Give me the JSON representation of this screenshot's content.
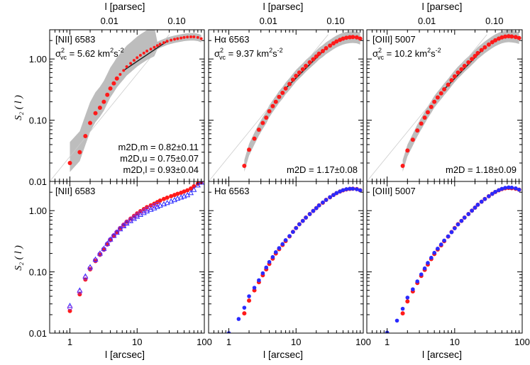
{
  "figure": {
    "ylabel": "S₂ ( l )",
    "top_axis_label": "l [parsec]",
    "bottom_axis_label": "l [arcsec]",
    "x_ticks": [
      "1",
      "10",
      "100"
    ],
    "top_ticks": [
      "0.01",
      "0.10"
    ],
    "y_ticks": [
      "0.01",
      "0.10",
      "1.00"
    ]
  },
  "colors": {
    "red": "#ff1a1a",
    "blue": "#2a2aff",
    "gray": "#bdbdbd",
    "dark": "#222222"
  },
  "chart_data": [
    {
      "panel": "top-left",
      "type": "scatter",
      "title": "[NII] 6583",
      "annotation": "σ²vc = 5.62 km²s⁻²",
      "sigma_label": "σ",
      "sigma_sup": "2",
      "sigma_sub": "vc",
      "sigma_value": " = 5.62 km",
      "unit_sup1": "2",
      "unit_mid": "s",
      "unit_sup2": "-2",
      "fit_lines": [
        "m2D,m = 0.82±0.11",
        "m2D,u = 0.75±0.07",
        "m2D,l = 0.93±0.04"
      ],
      "xscale": "log",
      "yscale": "log",
      "xlim": [
        0.5,
        100
      ],
      "ylim": [
        0.01,
        3
      ],
      "series": [
        {
          "marker": "red-circle",
          "x": [
            1,
            1.4,
            1.7,
            2,
            2.4,
            2.8,
            3.2,
            3.6,
            4,
            4.5,
            5,
            5.6,
            6.3,
            7,
            8,
            9,
            10,
            11.2,
            12.6,
            14,
            16,
            18,
            20,
            22,
            25,
            28,
            32,
            36,
            40,
            45,
            50,
            56,
            63,
            70,
            80,
            90
          ],
          "y": [
            0.02,
            0.03,
            0.055,
            0.09,
            0.13,
            0.16,
            0.2,
            0.26,
            0.33,
            0.4,
            0.48,
            0.56,
            0.65,
            0.75,
            0.85,
            0.95,
            1.05,
            1.15,
            1.25,
            1.35,
            1.45,
            1.55,
            1.65,
            1.75,
            1.85,
            1.95,
            2.03,
            2.1,
            2.15,
            2.2,
            2.25,
            2.28,
            2.3,
            2.3,
            2.25,
            2.15
          ]
        }
      ]
    },
    {
      "panel": "top-middle",
      "type": "scatter",
      "title": "Hα 6563",
      "annotation": "σ²vc = 9.37 km²s⁻²",
      "sigma_label": "σ",
      "sigma_sup": "2",
      "sigma_sub": "vc",
      "sigma_value": " = 9.37 km",
      "unit_sup1": "2",
      "unit_mid": "s",
      "unit_sup2": "-2",
      "fit_lines": [
        "m2D = 1.17±0.08"
      ],
      "xscale": "log",
      "yscale": "log",
      "xlim": [
        0.5,
        100
      ],
      "ylim": [
        0.01,
        3
      ],
      "series": [
        {
          "marker": "red-circle",
          "x": [
            1.7,
            2,
            2.4,
            2.8,
            3.2,
            3.6,
            4,
            4.5,
            5,
            5.6,
            6.3,
            7,
            8,
            9,
            10,
            11.2,
            12.6,
            14,
            16,
            18,
            20,
            22,
            25,
            28,
            32,
            36,
            40,
            45,
            50,
            56,
            63,
            70,
            80,
            90
          ],
          "y": [
            0.018,
            0.033,
            0.05,
            0.07,
            0.09,
            0.11,
            0.14,
            0.17,
            0.2,
            0.24,
            0.28,
            0.33,
            0.39,
            0.46,
            0.53,
            0.6,
            0.68,
            0.77,
            0.88,
            0.99,
            1.1,
            1.22,
            1.35,
            1.5,
            1.65,
            1.8,
            1.93,
            2.05,
            2.15,
            2.22,
            2.27,
            2.28,
            2.25,
            2.15
          ]
        }
      ]
    },
    {
      "panel": "top-right",
      "type": "scatter",
      "title": "[OIII] 5007",
      "annotation": "σ²vc = 10.2 km²s⁻²",
      "sigma_label": "σ",
      "sigma_sup": "2",
      "sigma_sub": "vc",
      "sigma_value": " = 10.2 km",
      "unit_sup1": "2",
      "unit_mid": "s",
      "unit_sup2": "-2",
      "fit_lines": [
        "m2D = 1.18±0.09"
      ],
      "xscale": "log",
      "yscale": "log",
      "xlim": [
        0.5,
        100
      ],
      "ylim": [
        0.01,
        3
      ],
      "series": [
        {
          "marker": "red-circle",
          "x": [
            1.7,
            2,
            2.4,
            2.8,
            3.2,
            3.6,
            4,
            4.5,
            5,
            5.6,
            6.3,
            7,
            8,
            9,
            10,
            11.2,
            12.6,
            14,
            16,
            18,
            20,
            22,
            25,
            28,
            32,
            36,
            40,
            45,
            50,
            56,
            63,
            70,
            80,
            90
          ],
          "y": [
            0.018,
            0.032,
            0.048,
            0.068,
            0.088,
            0.11,
            0.135,
            0.165,
            0.2,
            0.235,
            0.275,
            0.32,
            0.38,
            0.45,
            0.52,
            0.6,
            0.68,
            0.77,
            0.88,
            1.0,
            1.12,
            1.25,
            1.4,
            1.55,
            1.72,
            1.88,
            2.02,
            2.15,
            2.25,
            2.32,
            2.35,
            2.33,
            2.28,
            2.2
          ]
        }
      ]
    },
    {
      "panel": "bottom-left",
      "type": "scatter",
      "title": "[NII] 6583",
      "xscale": "log",
      "yscale": "log",
      "xlim": [
        0.5,
        100
      ],
      "ylim": [
        0.01,
        3
      ],
      "series": [
        {
          "marker": "red-circle",
          "x": [
            1,
            1.4,
            1.7,
            2,
            2.4,
            2.8,
            3.2,
            3.6,
            4,
            4.5,
            5,
            5.6,
            6.3,
            7,
            8,
            9,
            10,
            11.2,
            12.6,
            14,
            16,
            18,
            20,
            22,
            25,
            28,
            32,
            36,
            40,
            45,
            50,
            56,
            63,
            70,
            80,
            90
          ],
          "y": [
            0.023,
            0.043,
            0.075,
            0.11,
            0.15,
            0.19,
            0.23,
            0.28,
            0.33,
            0.39,
            0.45,
            0.52,
            0.59,
            0.66,
            0.74,
            0.82,
            0.9,
            0.98,
            1.06,
            1.14,
            1.22,
            1.3,
            1.38,
            1.46,
            1.55,
            1.63,
            1.72,
            1.8,
            1.88,
            1.96,
            2.05,
            2.15,
            2.3,
            2.5,
            2.75,
            2.9
          ]
        },
        {
          "marker": "blue-triangle",
          "x": [
            1,
            1.4,
            1.7,
            2,
            2.4,
            2.8,
            3.2,
            3.6,
            4,
            4.5,
            5,
            5.6,
            6.3,
            7,
            8,
            9,
            10,
            11.2,
            12.6,
            14,
            16,
            18,
            20,
            22,
            25,
            28,
            32,
            36,
            40,
            45,
            50,
            56,
            63,
            70,
            80,
            90
          ],
          "y": [
            0.028,
            0.05,
            0.085,
            0.12,
            0.16,
            0.2,
            0.24,
            0.29,
            0.34,
            0.39,
            0.44,
            0.5,
            0.56,
            0.62,
            0.68,
            0.74,
            0.8,
            0.86,
            0.92,
            0.98,
            1.04,
            1.1,
            1.16,
            1.22,
            1.28,
            1.34,
            1.42,
            1.5,
            1.58,
            1.65,
            1.72,
            1.8,
            1.95,
            2.2,
            2.6,
            2.9
          ]
        },
        {
          "marker": "purple-open",
          "x": [
            1,
            1.4,
            1.7,
            2,
            2.4,
            2.8,
            3.2,
            3.6,
            4,
            4.5,
            5,
            5.6,
            6.3,
            7,
            8,
            9,
            10,
            11.2,
            12.6,
            14,
            16,
            18,
            20
          ],
          "y": [
            0.026,
            0.047,
            0.08,
            0.115,
            0.155,
            0.195,
            0.235,
            0.285,
            0.335,
            0.39,
            0.445,
            0.51,
            0.575,
            0.64,
            0.71,
            0.78,
            0.85,
            0.92,
            0.99,
            1.06,
            1.13,
            1.2,
            1.27
          ]
        }
      ]
    },
    {
      "panel": "bottom-middle",
      "type": "scatter",
      "title": "Hα 6563",
      "xscale": "log",
      "yscale": "log",
      "xlim": [
        0.5,
        100
      ],
      "ylim": [
        0.01,
        3
      ],
      "series": [
        {
          "marker": "red-circle",
          "x": [
            1.7,
            2,
            2.4,
            2.8,
            3.2,
            3.6,
            4,
            4.5,
            5,
            5.6,
            6.3,
            7,
            8,
            9,
            10,
            11.2,
            12.6,
            14,
            16,
            18,
            20,
            22,
            25,
            28,
            32,
            36,
            40,
            45,
            50,
            56,
            63,
            70,
            80,
            90
          ],
          "y": [
            0.021,
            0.034,
            0.05,
            0.068,
            0.088,
            0.11,
            0.135,
            0.165,
            0.2,
            0.235,
            0.275,
            0.32,
            0.38,
            0.45,
            0.52,
            0.6,
            0.68,
            0.77,
            0.88,
            0.99,
            1.1,
            1.22,
            1.35,
            1.5,
            1.65,
            1.8,
            1.93,
            2.05,
            2.15,
            2.22,
            2.27,
            2.28,
            2.25,
            2.15
          ]
        },
        {
          "marker": "blue-circle",
          "x": [
            1,
            1.4,
            1.7,
            2,
            2.4,
            2.8,
            3.2,
            3.6,
            4,
            4.5,
            5,
            5.6,
            6.3,
            7,
            8,
            9,
            10,
            11.2,
            12.6,
            14,
            16,
            18,
            20,
            22,
            25,
            28,
            32,
            36,
            40,
            45,
            50,
            56,
            63,
            70,
            80,
            90
          ],
          "y": [
            0.01,
            0.017,
            0.026,
            0.04,
            0.055,
            0.073,
            0.095,
            0.118,
            0.145,
            0.175,
            0.21,
            0.245,
            0.285,
            0.33,
            0.385,
            0.45,
            0.52,
            0.6,
            0.68,
            0.77,
            0.88,
            0.99,
            1.1,
            1.22,
            1.36,
            1.5,
            1.66,
            1.8,
            1.94,
            2.06,
            2.16,
            2.24,
            2.28,
            2.28,
            2.24,
            2.15
          ]
        }
      ]
    },
    {
      "panel": "bottom-right",
      "type": "scatter",
      "title": "[OIII] 5007",
      "xscale": "log",
      "yscale": "log",
      "xlim": [
        0.5,
        100
      ],
      "ylim": [
        0.01,
        3
      ],
      "series": [
        {
          "marker": "red-circle",
          "x": [
            1.7,
            2,
            2.4,
            2.8,
            3.2,
            3.6,
            4,
            4.5,
            5,
            5.6,
            6.3,
            7,
            8,
            9,
            10,
            11.2,
            12.6,
            14,
            16,
            18,
            20,
            22,
            25,
            28,
            32,
            36,
            40,
            45,
            50,
            56,
            63,
            70,
            80,
            90
          ],
          "y": [
            0.021,
            0.033,
            0.048,
            0.066,
            0.086,
            0.108,
            0.132,
            0.162,
            0.196,
            0.232,
            0.272,
            0.318,
            0.378,
            0.448,
            0.52,
            0.6,
            0.68,
            0.77,
            0.88,
            1.0,
            1.12,
            1.25,
            1.4,
            1.55,
            1.72,
            1.88,
            2.02,
            2.15,
            2.25,
            2.32,
            2.35,
            2.33,
            2.28,
            2.2
          ]
        },
        {
          "marker": "blue-circle",
          "x": [
            1,
            1.4,
            1.7,
            2,
            2.4,
            2.8,
            3.2,
            3.6,
            4,
            4.5,
            5,
            5.6,
            6.3,
            7,
            8,
            9,
            10,
            11.2,
            12.6,
            14,
            16,
            18,
            20,
            22,
            25,
            28,
            32,
            36,
            40,
            45,
            50,
            56,
            63,
            70,
            80,
            90
          ],
          "y": [
            0.0102,
            0.016,
            0.025,
            0.038,
            0.052,
            0.07,
            0.091,
            0.114,
            0.14,
            0.17,
            0.205,
            0.24,
            0.28,
            0.325,
            0.38,
            0.445,
            0.515,
            0.595,
            0.68,
            0.77,
            0.88,
            1.0,
            1.12,
            1.25,
            1.4,
            1.55,
            1.72,
            1.88,
            2.03,
            2.16,
            2.27,
            2.36,
            2.4,
            2.38,
            2.32,
            2.2
          ]
        }
      ]
    }
  ]
}
